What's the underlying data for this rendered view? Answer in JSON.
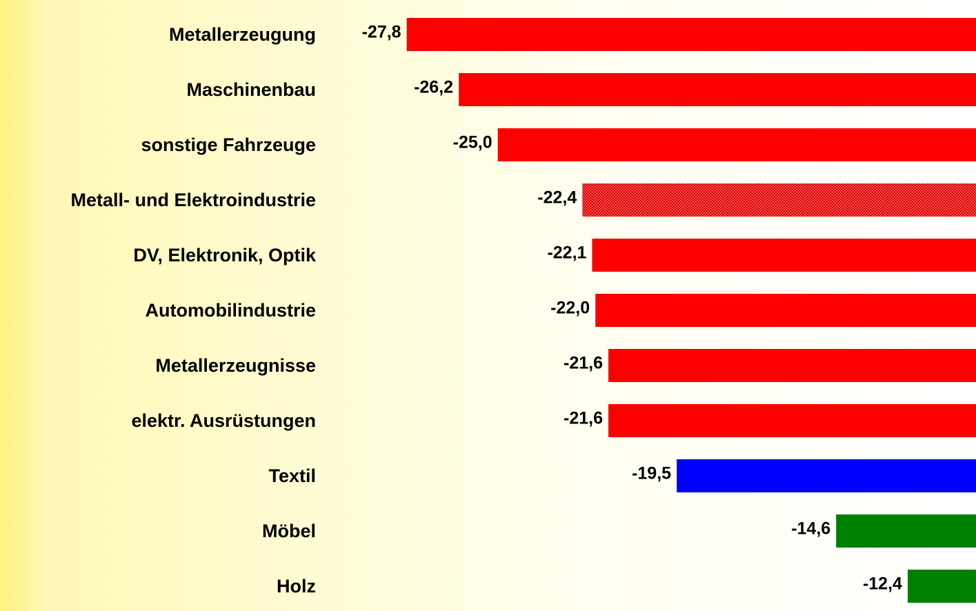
{
  "chart_data": {
    "type": "barh",
    "categories": [
      "Metallerzeugung",
      "Maschinenbau",
      "sonstige Fahrzeuge",
      "Metall- und Elektroindustrie",
      "DV, Elektronik, Optik",
      "Automobilindustrie",
      "Metallerzeugnisse",
      "elektr. Ausrüstungen",
      "Textil",
      "Möbel",
      "Holz"
    ],
    "values": [
      -27.8,
      -26.2,
      -25.0,
      -22.4,
      -22.1,
      -22.0,
      -21.6,
      -21.6,
      -19.5,
      -14.6,
      -12.4
    ],
    "value_labels": [
      "-27,8",
      "-26,2",
      "-25,0",
      "-22,4",
      "-22,1",
      "-22,0",
      "-21,6",
      "-21,6",
      "-19,5",
      "-14,6",
      "-12,4"
    ],
    "colors": [
      "#ff0000",
      "#ff0000",
      "#ff0000",
      "#ff0000",
      "#ff0000",
      "#ff0000",
      "#ff0000",
      "#ff0000",
      "#0000ff",
      "#008000",
      "#008000"
    ],
    "patterned_categories": [
      3
    ],
    "xlim": [
      -40.3,
      -10.3
    ]
  }
}
